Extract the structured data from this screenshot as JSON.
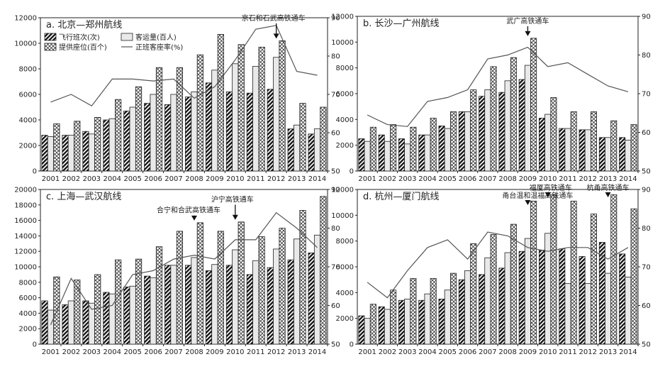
{
  "chart_data": [
    {
      "type": "bar",
      "title": "a. 北京—郑州航线",
      "categories": [
        "2001",
        "2002",
        "2003",
        "2004",
        "2005",
        "2006",
        "2007",
        "2008",
        "2009",
        "2010",
        "2011",
        "2012",
        "2013",
        "2014"
      ],
      "ylim": [
        0,
        12000
      ],
      "yticks": [
        0,
        2000,
        4000,
        6000,
        8000,
        10000,
        12000
      ],
      "y2lim": [
        50,
        90
      ],
      "y2ticks": [
        50,
        60,
        70,
        80,
        90
      ],
      "series": [
        {
          "name": "飞行班次(次)",
          "values": [
            2800,
            2800,
            3100,
            4000,
            4700,
            5300,
            5200,
            5800,
            6900,
            6200,
            6100,
            6400,
            3300,
            2900
          ]
        },
        {
          "name": "提供座位(百个)",
          "values": [
            3700,
            3900,
            4200,
            5600,
            6600,
            8100,
            8100,
            9100,
            10700,
            9900,
            9700,
            10200,
            5300,
            5000
          ]
        },
        {
          "name": "客运量(百人)",
          "values": [
            2700,
            2800,
            2900,
            4100,
            5000,
            6000,
            6000,
            6200,
            7900,
            8400,
            8200,
            8900,
            3600,
            3300
          ]
        },
        {
          "name": "正班客座率(%)",
          "values": [
            68,
            70,
            67,
            74,
            74,
            73.5,
            74,
            69,
            72,
            79,
            87,
            88,
            76,
            75
          ]
        }
      ],
      "annotations": [
        {
          "text": "京石和石武高铁通车",
          "x": "2012"
        }
      ],
      "legend": {
        "position": "top-left",
        "items": [
          {
            "label": "飞行班次(次)",
            "style": "dense-hatch"
          },
          {
            "label": "客运量(百人)",
            "style": "light"
          },
          {
            "label": "提供座位(百个)",
            "style": "cross-hatch"
          },
          {
            "label": "正班客座率(%)",
            "style": "line"
          }
        ]
      }
    },
    {
      "type": "bar",
      "title": "b. 长沙—广州航线",
      "categories": [
        "2001",
        "2002",
        "2003",
        "2004",
        "2005",
        "2006",
        "2007",
        "2008",
        "2009",
        "2010",
        "2011",
        "2012",
        "2013",
        "2014"
      ],
      "ylim": [
        0,
        12000
      ],
      "yticks": [
        0,
        2000,
        4000,
        6000,
        8000,
        10000,
        12000
      ],
      "y2lim": [
        50,
        90
      ],
      "y2ticks": [
        50,
        60,
        70,
        80,
        90
      ],
      "series": [
        {
          "name": "飞行班次(次)",
          "values": [
            2500,
            2800,
            2500,
            2800,
            3500,
            4600,
            5800,
            6100,
            7100,
            4100,
            3300,
            3200,
            2600,
            2600
          ]
        },
        {
          "name": "提供座位(百个)",
          "values": [
            3400,
            3600,
            3400,
            4100,
            4600,
            6300,
            8100,
            8800,
            10300,
            5700,
            4600,
            4600,
            3900,
            3600
          ]
        },
        {
          "name": "客运量(百人)",
          "values": [
            2300,
            2300,
            2100,
            2800,
            3300,
            4600,
            6300,
            7000,
            8200,
            4400,
            3300,
            3200,
            2600,
            2400
          ]
        },
        {
          "name": "正班客座率(%)",
          "values": [
            64.5,
            62,
            61.5,
            68,
            69,
            71,
            79,
            80,
            82,
            77,
            78,
            75,
            72,
            70.5
          ]
        }
      ],
      "annotations": [
        {
          "text": "武广高铁通车",
          "x": "2009"
        }
      ]
    },
    {
      "type": "bar",
      "title": "c. 上海—武汉航线",
      "categories": [
        "2001",
        "2002",
        "2003",
        "2004",
        "2005",
        "2006",
        "2007",
        "2008",
        "2009",
        "2010",
        "2011",
        "2012",
        "2013",
        "2014"
      ],
      "ylim": [
        0,
        20000
      ],
      "yticks": [
        0,
        2000,
        4000,
        6000,
        8000,
        10000,
        12000,
        14000,
        16000,
        18000,
        20000
      ],
      "y2lim": [
        50,
        90
      ],
      "y2ticks": [
        50,
        60,
        70,
        80,
        90
      ],
      "series": [
        {
          "name": "飞行班次(次)",
          "values": [
            5600,
            5100,
            5600,
            6700,
            7400,
            8800,
            10200,
            10200,
            9500,
            10200,
            9000,
            9900,
            10900,
            11800
          ]
        },
        {
          "name": "提供座位(百个)",
          "values": [
            8700,
            8300,
            9000,
            10900,
            11000,
            12600,
            14600,
            15700,
            14600,
            15800,
            13900,
            15000,
            17300,
            19100
          ]
        },
        {
          "name": "客运量(百人)",
          "values": [
            4400,
            5600,
            5300,
            6500,
            7500,
            8600,
            10200,
            11200,
            10300,
            12200,
            10800,
            12300,
            13600,
            14100
          ]
        },
        {
          "name": "正班客座率(%)",
          "values": [
            55,
            67,
            59,
            60,
            68,
            69,
            72,
            73,
            72,
            77,
            77,
            84,
            80,
            75
          ]
        }
      ],
      "annotations": [
        {
          "text": "合宁和合武高铁通车",
          "x": "2008"
        },
        {
          "text": "沪宁高铁通车",
          "x": "2010"
        }
      ]
    },
    {
      "type": "bar",
      "title": "d. 杭州—厦门航线",
      "categories": [
        "2001",
        "2002",
        "2003",
        "2004",
        "2005",
        "2006",
        "2007",
        "2008",
        "2009",
        "2010",
        "2011",
        "2012",
        "2013",
        "2014"
      ],
      "ylim": [
        0,
        12000
      ],
      "yticks": [
        0,
        2000,
        4000,
        6000,
        8000,
        10000,
        12000
      ],
      "y2lim": [
        50,
        90
      ],
      "y2ticks": [
        50,
        60,
        70,
        80,
        90
      ],
      "series": [
        {
          "name": "飞行班次(次)",
          "values": [
            2200,
            2900,
            3400,
            3400,
            3500,
            5000,
            5400,
            5900,
            7200,
            7300,
            7400,
            6800,
            7900,
            7000
          ]
        },
        {
          "name": "提供座位(百个)",
          "values": [
            3100,
            4200,
            5100,
            5100,
            5500,
            7800,
            8500,
            9300,
            11100,
            11600,
            11100,
            10100,
            11600,
            10500
          ]
        },
        {
          "name": "客运量(百人)",
          "values": [
            2000,
            2700,
            3500,
            3900,
            4200,
            5700,
            6700,
            7100,
            8200,
            8600,
            4700,
            4700,
            5500,
            5200
          ]
        },
        {
          "name": "正班客座率(%)",
          "values": [
            66,
            62,
            69,
            75,
            77,
            72,
            79,
            78,
            75,
            74,
            75,
            75,
            72,
            75
          ]
        }
      ],
      "annotations": [
        {
          "text": "甬台温和温福高铁通车",
          "x": "2009"
        },
        {
          "text": "福厦高铁通车",
          "x": "2010"
        },
        {
          "text": "杭甬高铁通车",
          "x": "2013"
        }
      ]
    }
  ]
}
